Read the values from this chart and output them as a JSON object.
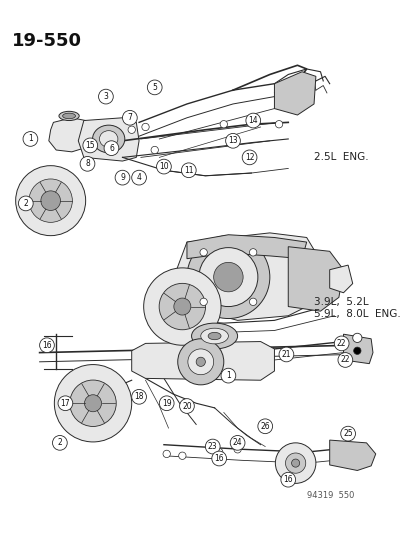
{
  "bg_color": "#ffffff",
  "line_color": "#2a2a2a",
  "fig_width": 4.14,
  "fig_height": 5.33,
  "dpi": 100,
  "title": "19-550",
  "watermark": "94319  550",
  "label_2_5L": "2.5L  ENG.",
  "label_3_9L": "3.9L,  5.2L",
  "label_5_9L": "5.9L,  8.0L  ENG.",
  "gray_light": "#e8e8e8",
  "gray_mid": "#c8c8c8",
  "gray_dark": "#a0a0a0"
}
